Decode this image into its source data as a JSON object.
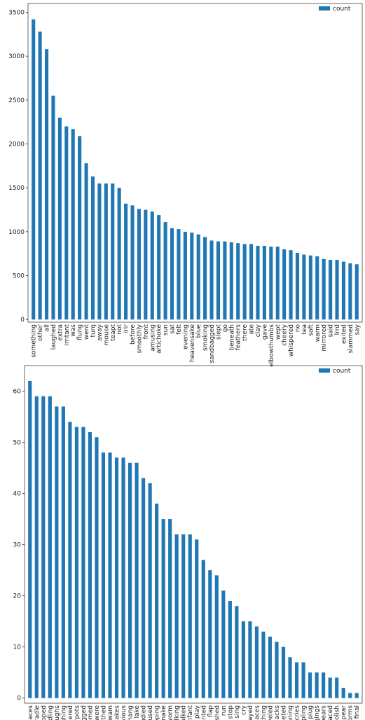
{
  "chart_data": [
    {
      "type": "bar",
      "categories": [
        "something",
        "other",
        "all",
        "laughed",
        "extra",
        "irritant",
        "was",
        "flung",
        "went",
        "turq",
        "away",
        "mouse",
        "teapt",
        "not",
        "irir",
        "before",
        "smoothly",
        "front",
        "amusing",
        "artichoke",
        "sun",
        "sat",
        "felt",
        "evening",
        "heavensake",
        "blue",
        "smoking",
        "sandbagged",
        "slept",
        "go",
        "beneath",
        "feathers",
        "there",
        "ate",
        "clay",
        "gave",
        "elbowthumbs",
        "wept",
        "cheery",
        "whispered",
        "no",
        "tea",
        "soft",
        "warm",
        "mirrored",
        "said",
        "lrrd",
        "exited",
        "slammed",
        "say"
      ],
      "series": [
        {
          "name": "count",
          "color": "#1f77b4",
          "values": [
            3420,
            3280,
            3080,
            2550,
            2300,
            2200,
            2170,
            2090,
            1780,
            1630,
            1550,
            1550,
            1550,
            1500,
            1320,
            1300,
            1260,
            1250,
            1230,
            1190,
            1110,
            1040,
            1030,
            1000,
            990,
            970,
            940,
            900,
            890,
            890,
            880,
            870,
            860,
            860,
            840,
            840,
            830,
            830,
            800,
            790,
            760,
            740,
            730,
            720,
            690,
            680,
            680,
            660,
            640,
            630
          ]
        }
      ],
      "ylim": [
        -30,
        3600
      ],
      "yticks": [
        0,
        500,
        1000,
        1500,
        2000,
        2500,
        3000,
        3500
      ],
      "legend": "upper right"
    },
    {
      "type": "bar",
      "categories": [
        "spaces",
        "cradle",
        "stopped",
        "cradling",
        "laughs",
        "laughing",
        "feathered",
        "flowerpots",
        "plugged",
        "blossomed",
        "were",
        "soothed",
        "swam",
        "takes",
        "oblivious",
        "hang",
        "lake",
        "studied",
        "moused",
        "flapping",
        "snake",
        "worm",
        "talking",
        "talked",
        "infant",
        "play",
        "fronted",
        "flap",
        "polished",
        "run",
        "stop",
        "sing",
        "cry",
        "layed",
        "places",
        "soothing",
        "shoveled",
        "backs",
        "trumpeted",
        "running",
        "cries",
        "trampling",
        "plug",
        "pluggings",
        "appears",
        "placed",
        "polish",
        "appear",
        "worms",
        "final"
      ],
      "series": [
        {
          "name": "count",
          "color": "#1f77b4",
          "values": [
            62,
            59,
            59,
            59,
            57,
            57,
            54,
            53,
            53,
            52,
            51,
            48,
            48,
            47,
            47,
            46,
            46,
            43,
            42,
            38,
            35,
            35,
            32,
            32,
            32,
            31,
            27,
            25,
            24,
            21,
            19,
            18,
            15,
            15,
            14,
            13,
            12,
            11,
            10,
            8,
            7,
            7,
            5,
            5,
            5,
            4,
            4,
            2,
            1,
            1
          ]
        }
      ],
      "ylim": [
        -1,
        65
      ],
      "yticks": [
        0,
        10,
        20,
        30,
        40,
        50,
        60
      ],
      "legend": "upper right"
    }
  ]
}
